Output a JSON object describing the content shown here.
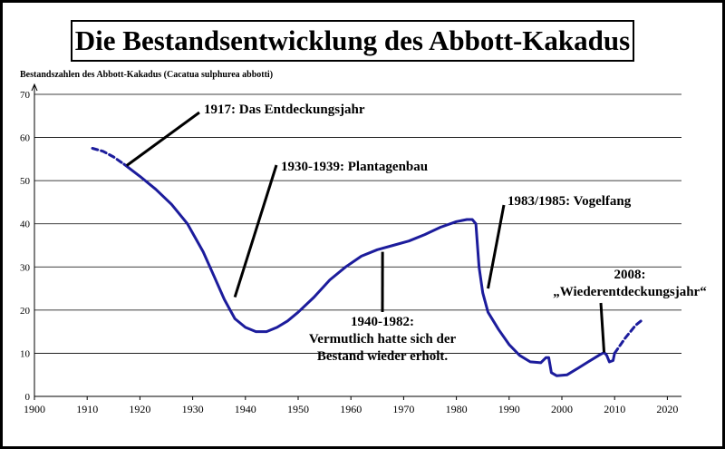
{
  "chart_data": {
    "type": "line",
    "title": "Die Bestandsentwicklung des Abbott-Kakadus",
    "ylabel": "Bestandszahlen des Abbott-Kakadus (Cacatua sulphurea abbotti)",
    "xlabel": "",
    "xlim": [
      1900,
      2020
    ],
    "ylim": [
      0,
      70
    ],
    "x_ticks": [
      1900,
      1910,
      1920,
      1930,
      1940,
      1950,
      1960,
      1970,
      1980,
      1990,
      2000,
      2010,
      2020
    ],
    "y_ticks": [
      0,
      10,
      20,
      30,
      40,
      50,
      60,
      70
    ],
    "grid": "horizontal",
    "line_color": "#1c1c9c",
    "series": [
      {
        "name": "",
        "segments": [
          {
            "style": "dashed",
            "points": [
              [
                1911,
                57.5
              ],
              [
                1913,
                56.8
              ],
              [
                1915,
                55.5
              ],
              [
                1917,
                53.8
              ]
            ]
          },
          {
            "style": "solid",
            "points": [
              [
                1917,
                53.8
              ],
              [
                1920,
                51
              ],
              [
                1923,
                48
              ],
              [
                1926,
                44.5
              ],
              [
                1929,
                40
              ],
              [
                1932,
                33.5
              ],
              [
                1934,
                28
              ],
              [
                1936,
                22.5
              ],
              [
                1938,
                18
              ],
              [
                1940,
                16
              ],
              [
                1942,
                15
              ],
              [
                1944,
                15
              ],
              [
                1946,
                16
              ],
              [
                1948,
                17.5
              ],
              [
                1950,
                19.5
              ],
              [
                1953,
                23
              ],
              [
                1956,
                27
              ],
              [
                1959,
                30
              ],
              [
                1962,
                32.5
              ],
              [
                1965,
                34
              ],
              [
                1968,
                35
              ],
              [
                1971,
                36
              ],
              [
                1974,
                37.5
              ],
              [
                1977,
                39.2
              ],
              [
                1980,
                40.5
              ],
              [
                1982,
                41
              ],
              [
                1983,
                41
              ],
              [
                1983.7,
                40
              ],
              [
                1984.3,
                30
              ],
              [
                1985,
                24
              ],
              [
                1986,
                19.5
              ],
              [
                1988,
                15.5
              ],
              [
                1990,
                12
              ],
              [
                1992,
                9.5
              ],
              [
                1994,
                8
              ],
              [
                1996,
                7.8
              ],
              [
                1997,
                9
              ],
              [
                1997.5,
                9
              ],
              [
                1998,
                5.5
              ],
              [
                1999,
                4.8
              ],
              [
                2001,
                5
              ],
              [
                2003,
                6.5
              ],
              [
                2005,
                8
              ],
              [
                2007,
                9.5
              ],
              [
                2008,
                10.2
              ],
              [
                2008.5,
                9.5
              ],
              [
                2009,
                8
              ],
              [
                2009.7,
                8.3
              ],
              [
                2010,
                10
              ]
            ]
          },
          {
            "style": "dashed",
            "points": [
              [
                2010,
                10
              ],
              [
                2012,
                13.5
              ],
              [
                2014,
                16.5
              ],
              [
                2015.5,
                18
              ]
            ]
          }
        ]
      }
    ],
    "annotations": [
      {
        "lines": [
          "1917: Das Entdeckungsjahr"
        ],
        "target": [
          1917.5,
          53.5
        ]
      },
      {
        "lines": [
          "1930-1939: Plantagenbau"
        ],
        "target": [
          1938,
          23
        ]
      },
      {
        "lines": [
          "1983/1985: Vogelfang"
        ],
        "target": [
          1986,
          25
        ]
      },
      {
        "lines": [
          "2008:",
          "„Wiederentdeckungsjahr“"
        ],
        "target": [
          2008,
          10.2
        ]
      },
      {
        "lines": [
          "1940-1982:",
          "Vermutlich hatte sich der",
          "Bestand wieder erholt."
        ],
        "target": [
          1966,
          33.5
        ]
      }
    ]
  }
}
